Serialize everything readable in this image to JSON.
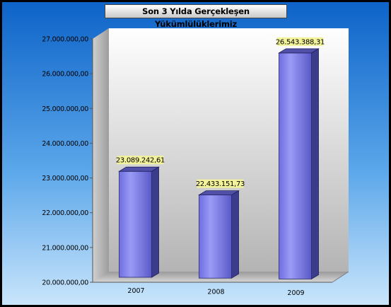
{
  "chart_data": {
    "type": "bar",
    "title": "Son 3 Yılda Gerçekleşen Yükümlülüklerimiz",
    "categories": [
      "2007",
      "2008",
      "2009"
    ],
    "values": [
      23089242.61,
      22433151.73,
      26543388.31
    ],
    "value_labels": [
      "23.089.242,61",
      "22.433.151,73",
      "26.543.388,31"
    ],
    "ylim": [
      20000000,
      27000000
    ],
    "yticks": [
      20000000,
      21000000,
      22000000,
      23000000,
      24000000,
      25000000,
      26000000,
      27000000
    ],
    "ytick_labels": [
      "20.000.000,00",
      "21.000.000,00",
      "22.000.000,00",
      "23.000.000,00",
      "24.000.000,00",
      "25.000.000,00",
      "26.000.000,00",
      "27.000.000,00"
    ],
    "xlabel": "",
    "ylabel": "",
    "grid": false,
    "legend": "none",
    "colors": {
      "bar_front": "#8c8cf0",
      "bar_side": "#3c3c8c",
      "bar_top": "#5050a8",
      "label_bg": "#f2f29a",
      "background_top": "#0d63c8",
      "background_bottom": "#c9e5fb"
    }
  }
}
